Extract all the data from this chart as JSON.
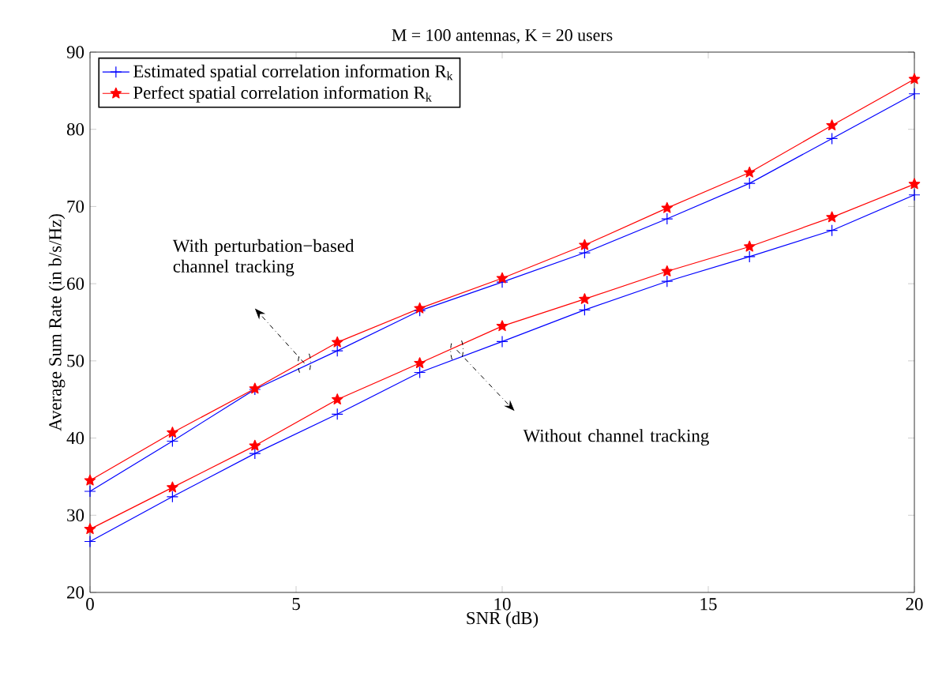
{
  "chart_data": {
    "type": "line",
    "title": "M = 100 antennas, K = 20 users",
    "xlabel": "SNR (dB)",
    "ylabel": "Average Sum Rate (in b/s/Hz)",
    "x": [
      0,
      2,
      4,
      6,
      8,
      10,
      12,
      14,
      16,
      18,
      20
    ],
    "series": [
      {
        "name": "Estimated spatial correlation information R$_{k}$",
        "color": "#0000ff",
        "marker": "cross",
        "values": [
          33.1,
          39.6,
          46.3,
          51.3,
          56.5,
          60.2,
          64.0,
          68.4,
          73.0,
          78.8,
          84.6
        ]
      },
      {
        "name": "Perfect spatial correlation information R$_{k}$",
        "color": "#ff0000",
        "marker": "star",
        "values": [
          34.5,
          40.7,
          46.4,
          52.4,
          56.8,
          60.7,
          65.0,
          69.8,
          74.4,
          80.5,
          86.5
        ]
      },
      {
        "color": "#0000ff",
        "marker": "cross",
        "values": [
          26.6,
          32.4,
          38.0,
          43.1,
          48.5,
          52.5,
          56.6,
          60.3,
          63.5,
          66.9,
          71.5
        ]
      },
      {
        "color": "#ff0000",
        "marker": "star",
        "values": [
          28.2,
          33.6,
          39.0,
          45.0,
          49.7,
          54.5,
          58.0,
          61.6,
          64.8,
          68.6,
          72.9
        ]
      }
    ],
    "xlim": [
      0,
      20
    ],
    "ylim": [
      20,
      90
    ],
    "xticks": [
      0,
      5,
      10,
      15,
      20
    ],
    "yticks": [
      20,
      30,
      40,
      50,
      60,
      70,
      80,
      90
    ],
    "grid": false,
    "legend": "top left",
    "line_style": "solid",
    "annotations": [
      "With perturbation−based channel tracking",
      "Without channel tracking"
    ]
  }
}
